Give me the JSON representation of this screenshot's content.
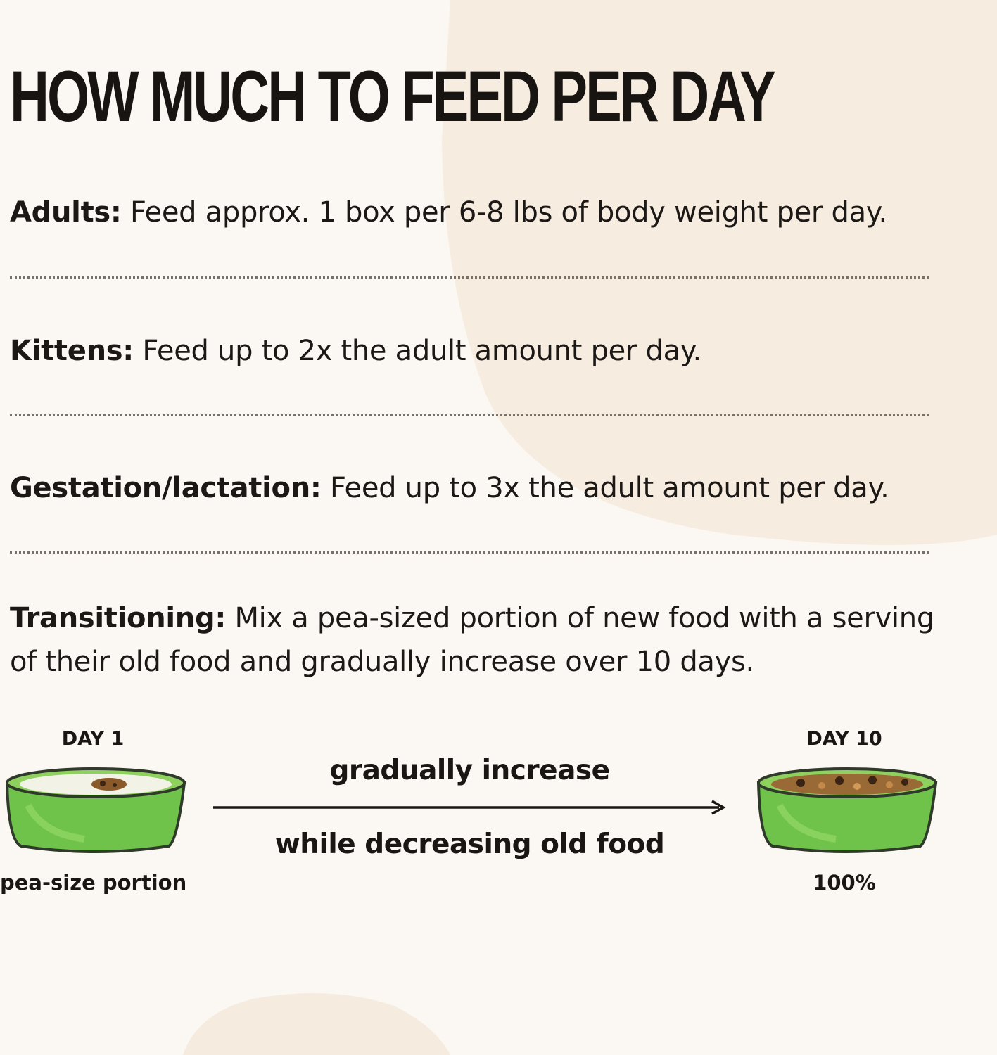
{
  "title": "HOW MUCH TO FEED PER DAY",
  "rows": [
    {
      "label": "Adults:",
      "text": "Feed approx. 1 box per 6-8 lbs of body weight per day."
    },
    {
      "label": "Kittens:",
      "text": "Feed up to 2x the adult amount per day."
    },
    {
      "label": "Gestation/lactation:",
      "text": "Feed up to 3x the adult amount per day."
    },
    {
      "label": "Transitioning:",
      "text": "Mix a pea-sized portion of new food with a serving of their old food and gradually increase over 10 days."
    }
  ],
  "transition": {
    "start": {
      "day": "DAY 1",
      "caption": "pea-size portion"
    },
    "end": {
      "day": "DAY 10",
      "caption": "100%"
    },
    "arrow_top": "gradually increase",
    "arrow_bottom": "while decreasing old food"
  },
  "colors": {
    "background": "#fbf8f4",
    "blob": "#f7ede2",
    "bowl_green": "#6fc24a",
    "food_brown": "#8a5a2b"
  },
  "icons": [
    "bowl-icon",
    "arrow-right-icon"
  ]
}
